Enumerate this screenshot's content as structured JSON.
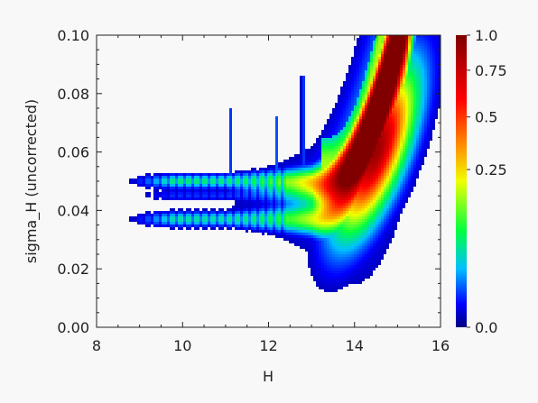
{
  "chart_data": {
    "type": "heatmap",
    "title": "",
    "xlabel": "H",
    "ylabel": "sigma_H (uncorrected)",
    "xlim": [
      8,
      16
    ],
    "ylim": [
      0.0,
      0.1
    ],
    "x_ticks": [
      "8",
      "10",
      "12",
      "14",
      "16"
    ],
    "y_ticks": [
      "0.00",
      "0.02",
      "0.04",
      "0.06",
      "0.08",
      "0.10"
    ],
    "colorbar": {
      "range": [
        0.0,
        1.0
      ],
      "tick_labels": [
        "0.0",
        "0.25",
        "0.5",
        "0.75",
        "1.0"
      ],
      "tick_values": [
        0.0,
        0.25,
        0.5,
        0.75,
        1.0
      ],
      "colors": [
        "#000080",
        "#0000ff",
        "#00c0ff",
        "#00ff40",
        "#f0ff00",
        "#ff9000",
        "#ff0000",
        "#800000"
      ]
    },
    "density_structure": {
      "upper_band_sigma": 0.05,
      "lower_band_sigma": 0.037,
      "middle_band_sigma": 0.045,
      "band_start_H": 8.9,
      "band_curve_knee_H": 13.0,
      "peak_H": 14.5,
      "peak_sigma": 0.06,
      "vertical_streaks_H": [
        11.1,
        12.2,
        12.8
      ]
    }
  }
}
